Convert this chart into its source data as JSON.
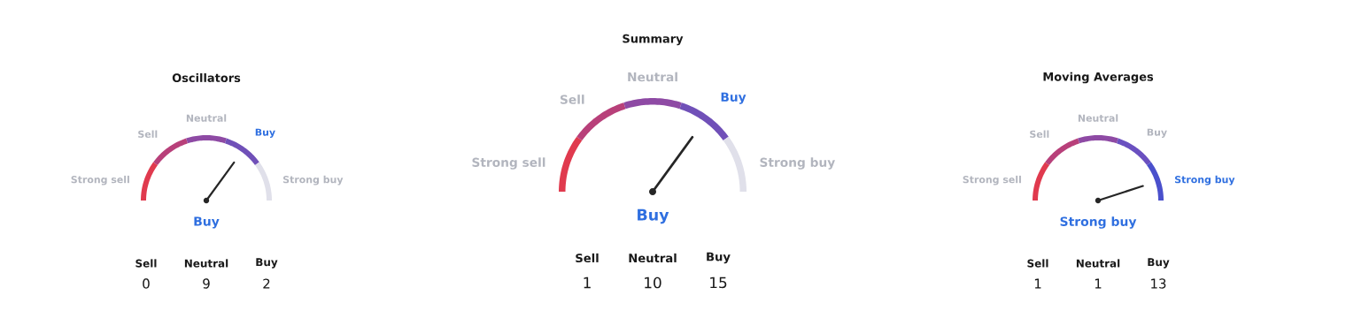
{
  "chart_data": [
    {
      "type": "donut",
      "title": "Oscillators",
      "categories": [
        "Strong sell",
        "Sell",
        "Neutral",
        "Buy",
        "Strong buy"
      ],
      "values": [
        20,
        20,
        20,
        20,
        20
      ],
      "colors": [
        "#e03a4e",
        "#b8407a",
        "#8e4aa4",
        "#7050b8",
        "#e0e0ea"
      ],
      "needle": "Buy",
      "annotations": [
        "Sell",
        "Neutral",
        "Buy",
        "0",
        "9",
        "2"
      ]
    },
    {
      "type": "donut",
      "title": "Summary",
      "categories": [
        "Strong sell",
        "Sell",
        "Neutral",
        "Buy",
        "Strong buy"
      ],
      "values": [
        20,
        20,
        20,
        20,
        20
      ],
      "colors": [
        "#e03a4e",
        "#b8407a",
        "#8e4aa4",
        "#7050b8",
        "#e0e0ea"
      ],
      "needle": "Buy",
      "annotations": [
        "Sell",
        "Neutral",
        "Buy",
        "1",
        "10",
        "15"
      ]
    },
    {
      "type": "donut",
      "title": "Moving Averages",
      "categories": [
        "Strong sell",
        "Sell",
        "Neutral",
        "Buy",
        "Strong buy"
      ],
      "values": [
        20,
        20,
        20,
        20,
        20
      ],
      "colors": [
        "#e03a4e",
        "#b8407a",
        "#8e4aa4",
        "#6a50c0",
        "#4a50cc"
      ],
      "needle": "Strong buy",
      "annotations": [
        "Sell",
        "Neutral",
        "Buy",
        "1",
        "1",
        "13"
      ]
    }
  ]
}
